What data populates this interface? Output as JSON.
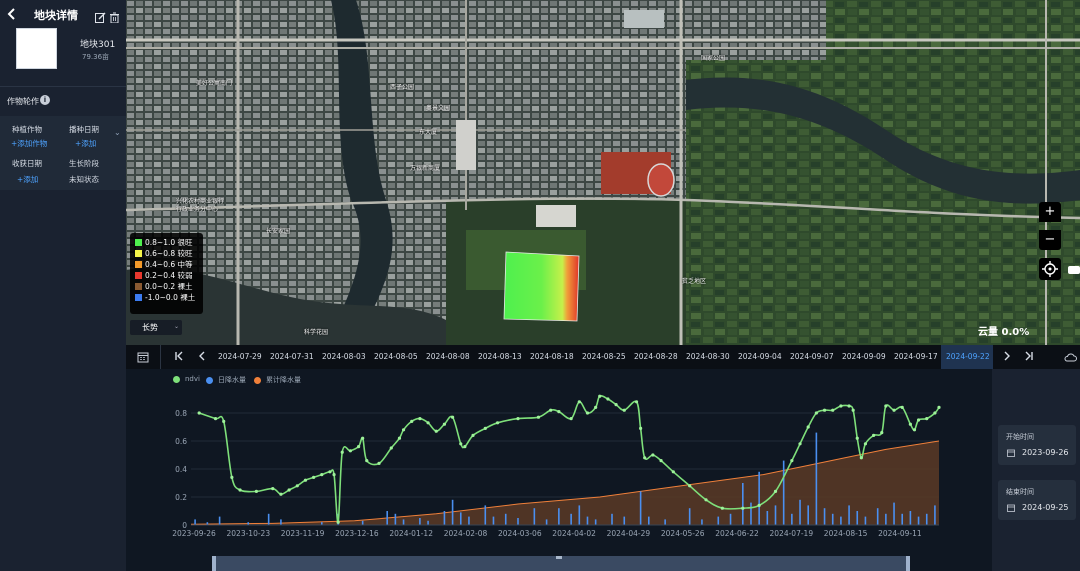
{
  "sidebar": {
    "title": "地块详情",
    "back_icon": "chevron-left-icon",
    "plot_name": "地块301",
    "plot_area": "79.36亩",
    "rotation_title": "作物轮作",
    "crop_label": "种植作物",
    "crop_action": "+添加作物",
    "sow_label": "播种日期",
    "sow_action": "+添加",
    "harvest_label": "收获日期",
    "harvest_action": "+添加",
    "stage_label": "生长阶段",
    "stage_value": "未知状态"
  },
  "map": {
    "legend": [
      {
        "range": "0.8~1.0",
        "label": "很旺",
        "color": "#4ef04e"
      },
      {
        "range": "0.6~0.8",
        "label": "较旺",
        "color": "#f6f64a"
      },
      {
        "range": "0.4~0.6",
        "label": "中等",
        "color": "#f39a2a"
      },
      {
        "range": "0.2~0.4",
        "label": "较弱",
        "color": "#e8382e"
      },
      {
        "range": "0.0~0.2",
        "label": "裸土",
        "color": "#8a5a32"
      },
      {
        "range": "-1.0~0.0",
        "label": "裸土",
        "color": "#3c7cf0"
      }
    ],
    "growth_select": "长势",
    "cloud_cover": "云量 0.0%",
    "zoom_in": "+",
    "zoom_out": "−",
    "labels": [
      "美好公寓南门",
      "西子公园",
      "奥景文园",
      "兴化农村商业银行",
      "行政业务分中心",
      "万银新商厦",
      "东大厦",
      "长安家园",
      "国家公园",
      "贫乏地区",
      "科学花园"
    ]
  },
  "timeline": {
    "dates": [
      "2024-07-29",
      "2024-07-31",
      "2024-08-03",
      "2024-08-05",
      "2024-08-08",
      "2024-08-13",
      "2024-08-18",
      "2024-08-25",
      "2024-08-28",
      "2024-08-30",
      "2024-09-04",
      "2024-09-07",
      "2024-09-09",
      "2024-09-17",
      "2024-09-22"
    ],
    "active_date": "2024-09-22"
  },
  "right_panel": {
    "start_label": "开始时间",
    "start_date": "2023-09-26",
    "end_label": "结束时间",
    "end_date": "2024-09-25"
  },
  "chart_data": {
    "type": "line",
    "series": [
      {
        "name": "ndvi",
        "color": "#7ee07a"
      },
      {
        "name": "日降水量",
        "color": "#4a8ff0"
      },
      {
        "name": "累计降水量",
        "color": "#f0803a"
      }
    ],
    "x_ticks": [
      "2023-09-26",
      "2023-10-23",
      "2023-11-19",
      "2023-12-16",
      "2024-01-12",
      "2024-02-08",
      "2024-03-06",
      "2024-04-02",
      "2024-04-29",
      "2024-05-26",
      "2024-06-22",
      "2024-07-19",
      "2024-08-15",
      "2024-09-11"
    ],
    "y_ticks": [
      "0",
      "0.2",
      "0.4",
      "0.6",
      "0.8"
    ],
    "ylim": [
      0,
      0.9
    ],
    "xlim_days": [
      0,
      366
    ],
    "ndvi_points": [
      [
        4,
        0.8
      ],
      [
        12,
        0.76
      ],
      [
        16,
        0.74
      ],
      [
        20,
        0.34
      ],
      [
        24,
        0.25
      ],
      [
        32,
        0.24
      ],
      [
        40,
        0.26
      ],
      [
        44,
        0.22
      ],
      [
        48,
        0.25
      ],
      [
        52,
        0.28
      ],
      [
        56,
        0.32
      ],
      [
        60,
        0.34
      ],
      [
        64,
        0.36
      ],
      [
        68,
        0.38
      ],
      [
        70,
        0.36
      ],
      [
        72,
        0.02
      ],
      [
        74,
        0.52
      ],
      [
        78,
        0.53
      ],
      [
        82,
        0.56
      ],
      [
        84,
        0.62
      ],
      [
        86,
        0.46
      ],
      [
        92,
        0.44
      ],
      [
        98,
        0.55
      ],
      [
        102,
        0.62
      ],
      [
        104,
        0.68
      ],
      [
        108,
        0.74
      ],
      [
        112,
        0.76
      ],
      [
        116,
        0.73
      ],
      [
        120,
        0.67
      ],
      [
        124,
        0.72
      ],
      [
        128,
        0.77
      ],
      [
        132,
        0.58
      ],
      [
        134,
        0.56
      ],
      [
        138,
        0.64
      ],
      [
        144,
        0.69
      ],
      [
        150,
        0.73
      ],
      [
        160,
        0.76
      ],
      [
        170,
        0.77
      ],
      [
        176,
        0.82
      ],
      [
        180,
        0.81
      ],
      [
        186,
        0.76
      ],
      [
        190,
        0.88
      ],
      [
        194,
        0.8
      ],
      [
        198,
        0.84
      ],
      [
        200,
        0.92
      ],
      [
        204,
        0.9
      ],
      [
        208,
        0.86
      ],
      [
        212,
        0.82
      ],
      [
        218,
        0.88
      ],
      [
        220,
        0.69
      ],
      [
        222,
        0.48
      ],
      [
        226,
        0.5
      ],
      [
        230,
        0.46
      ],
      [
        236,
        0.38
      ],
      [
        244,
        0.28
      ],
      [
        252,
        0.18
      ],
      [
        260,
        0.12
      ],
      [
        270,
        0.12
      ],
      [
        278,
        0.14
      ],
      [
        286,
        0.24
      ],
      [
        294,
        0.46
      ],
      [
        298,
        0.58
      ],
      [
        302,
        0.7
      ],
      [
        306,
        0.8
      ],
      [
        310,
        0.82
      ],
      [
        314,
        0.82
      ],
      [
        318,
        0.85
      ],
      [
        322,
        0.85
      ],
      [
        324,
        0.82
      ],
      [
        326,
        0.62
      ],
      [
        328,
        0.48
      ],
      [
        330,
        0.58
      ],
      [
        334,
        0.64
      ],
      [
        338,
        0.66
      ],
      [
        340,
        0.85
      ],
      [
        344,
        0.82
      ],
      [
        348,
        0.84
      ],
      [
        352,
        0.72
      ],
      [
        354,
        0.68
      ],
      [
        356,
        0.75
      ],
      [
        360,
        0.76
      ],
      [
        364,
        0.8
      ],
      [
        366,
        0.84
      ]
    ],
    "cumulative_points": [
      [
        0,
        0.005
      ],
      [
        40,
        0.012
      ],
      [
        80,
        0.03
      ],
      [
        120,
        0.08
      ],
      [
        160,
        0.15
      ],
      [
        200,
        0.2
      ],
      [
        240,
        0.28
      ],
      [
        280,
        0.36
      ],
      [
        300,
        0.42
      ],
      [
        320,
        0.48
      ],
      [
        340,
        0.54
      ],
      [
        366,
        0.6
      ]
    ],
    "daily_bars": [
      [
        2,
        0.04
      ],
      [
        8,
        0.02
      ],
      [
        14,
        0.06
      ],
      [
        28,
        0.02
      ],
      [
        38,
        0.08
      ],
      [
        44,
        0.04
      ],
      [
        64,
        0.02
      ],
      [
        72,
        0.08
      ],
      [
        84,
        0.03
      ],
      [
        96,
        0.1
      ],
      [
        100,
        0.08
      ],
      [
        104,
        0.04
      ],
      [
        112,
        0.05
      ],
      [
        116,
        0.03
      ],
      [
        124,
        0.1
      ],
      [
        128,
        0.18
      ],
      [
        132,
        0.09
      ],
      [
        136,
        0.06
      ],
      [
        144,
        0.14
      ],
      [
        148,
        0.06
      ],
      [
        154,
        0.08
      ],
      [
        160,
        0.05
      ],
      [
        168,
        0.12
      ],
      [
        174,
        0.04
      ],
      [
        180,
        0.12
      ],
      [
        186,
        0.08
      ],
      [
        190,
        0.14
      ],
      [
        194,
        0.06
      ],
      [
        198,
        0.04
      ],
      [
        206,
        0.08
      ],
      [
        212,
        0.06
      ],
      [
        220,
        0.24
      ],
      [
        224,
        0.06
      ],
      [
        232,
        0.04
      ],
      [
        244,
        0.12
      ],
      [
        250,
        0.04
      ],
      [
        258,
        0.06
      ],
      [
        264,
        0.08
      ],
      [
        270,
        0.3
      ],
      [
        274,
        0.16
      ],
      [
        278,
        0.38
      ],
      [
        282,
        0.1
      ],
      [
        286,
        0.14
      ],
      [
        290,
        0.46
      ],
      [
        294,
        0.08
      ],
      [
        298,
        0.18
      ],
      [
        302,
        0.14
      ],
      [
        306,
        0.66
      ],
      [
        310,
        0.12
      ],
      [
        314,
        0.08
      ],
      [
        318,
        0.06
      ],
      [
        322,
        0.14
      ],
      [
        326,
        0.1
      ],
      [
        330,
        0.06
      ],
      [
        336,
        0.12
      ],
      [
        340,
        0.08
      ],
      [
        344,
        0.16
      ],
      [
        348,
        0.08
      ],
      [
        352,
        0.1
      ],
      [
        356,
        0.06
      ],
      [
        360,
        0.08
      ],
      [
        364,
        0.14
      ]
    ]
  }
}
